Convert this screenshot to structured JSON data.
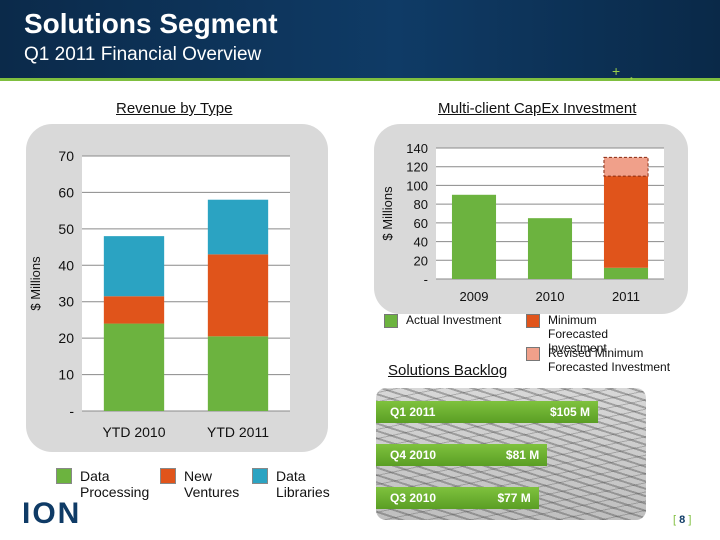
{
  "header": {
    "title": "Solutions Segment",
    "subtitle": "Q1 2011 Financial Overview"
  },
  "revenue": {
    "section_title": "Revenue by Type",
    "legend": [
      {
        "label": "Data Processing",
        "color": "#6cb33f"
      },
      {
        "label": "New Ventures",
        "color": "#e0541b"
      },
      {
        "label": "Data Libraries",
        "color": "#2ba3c2"
      }
    ]
  },
  "capex": {
    "section_title": "Multi-client CapEx Investment",
    "legend": [
      {
        "label": "Actual Investment",
        "color": "#6cb33f"
      },
      {
        "label": "Minimum Forecasted Investment",
        "color": "#e0541b"
      },
      {
        "label": "Revised Minimum Forecasted Investment",
        "color": "#f0a08a"
      }
    ]
  },
  "backlog": {
    "section_title": "Solutions Backlog",
    "items": [
      {
        "label": "Q1 2011",
        "value": "$105 M",
        "amount": 105
      },
      {
        "label": "Q4 2010",
        "value": "$81 M",
        "amount": 81
      },
      {
        "label": "Q3 2010",
        "value": "$77 M",
        "amount": 77
      }
    ]
  },
  "footer": {
    "logo": "ION",
    "page_open": "[",
    "page_number": "8",
    "page_close": "]"
  },
  "chart_data": [
    {
      "type": "bar",
      "stacked": true,
      "title": "Revenue by Type",
      "ylabel": "$ Millions",
      "ylim": [
        0,
        70
      ],
      "yticks": [
        "-",
        "10",
        "20",
        "30",
        "40",
        "50",
        "60",
        "70"
      ],
      "categories": [
        "YTD 2010",
        "YTD 2011"
      ],
      "series": [
        {
          "name": "Data Processing",
          "color": "#6cb33f",
          "values": [
            24,
            20.5
          ]
        },
        {
          "name": "New Ventures",
          "color": "#e0541b",
          "values": [
            7.5,
            22.5
          ]
        },
        {
          "name": "Data Libraries",
          "color": "#2ba3c2",
          "values": [
            16.5,
            15
          ]
        }
      ],
      "grid": true
    },
    {
      "type": "bar",
      "stacked": true,
      "title": "Multi-client CapEx Investment",
      "ylabel": "$ Millions",
      "ylim": [
        0,
        140
      ],
      "yticks": [
        "-",
        "20",
        "40",
        "60",
        "80",
        "100",
        "120",
        "140"
      ],
      "categories": [
        "2009",
        "2010",
        "2011"
      ],
      "series": [
        {
          "name": "Actual Investment",
          "color": "#6cb33f",
          "values": [
            90,
            65,
            12
          ]
        },
        {
          "name": "Minimum Forecasted Investment",
          "color": "#e0541b",
          "values": [
            0,
            0,
            98
          ]
        },
        {
          "name": "Revised Minimum Forecasted Investment",
          "color": "#f0a08a",
          "values": [
            0,
            0,
            20
          ]
        }
      ],
      "grid": true
    }
  ]
}
